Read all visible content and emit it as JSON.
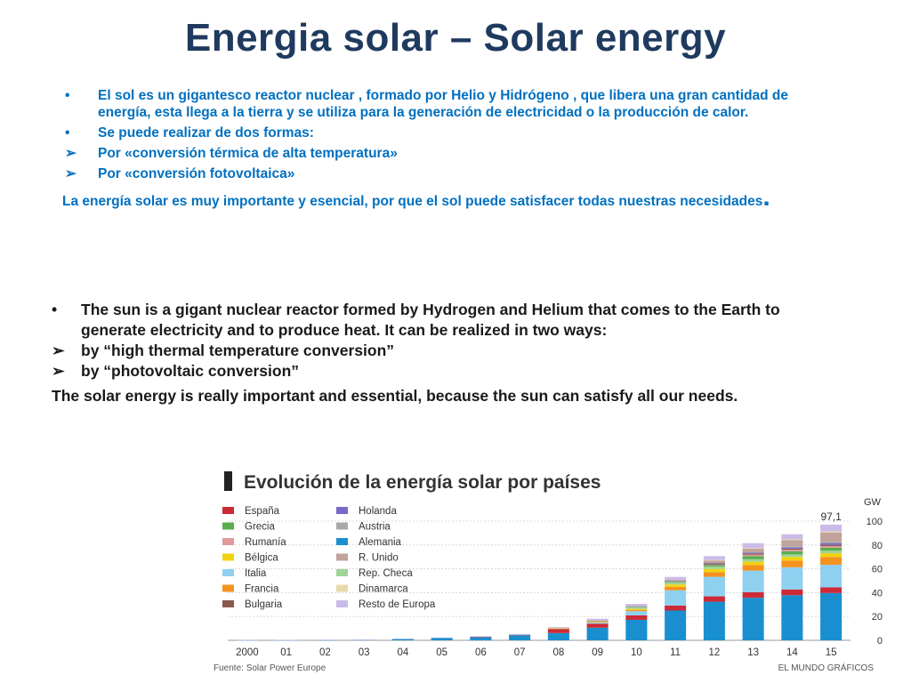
{
  "slide": {
    "title": "Energia solar – Solar energy"
  },
  "spanish": {
    "bullet1": "El sol es un gigantesco reactor nuclear , formado por Helio y Hidrógeno , que libera una gran cantidad de energía, esta llega  a la tierra y se utiliza para la generación de electricidad o la producción de calor.",
    "bullet2": "Se puede realizar de dos formas:",
    "arrow1": "Por «conversión térmica  de alta temperatura»",
    "arrow2": "Por «conversión fotovoltaica»",
    "closing": "La energía solar es muy importante y esencial, por que el sol puede satisfacer  todas nuestras necesidades",
    "closing_end": "."
  },
  "english": {
    "bullet1": "The  sun  is  a  gigant nuclear  reactor  formed by Hydrogen and Helium that  comes  to the Earth  to  generate  electricity  and  to  produce  heat. It can  be  realized  in  two ways:",
    "arrow1": "by  “high  thermal  temperature  conversion”",
    "arrow2": "by  “photovoltaic  conversion”",
    "closing": "The solar energy is really important and essential, because the sun can satisfy  all  our needs."
  },
  "chart_data": {
    "type": "bar",
    "stacked": true,
    "title": "Evolución de la energía solar por países",
    "ylabel": "GW",
    "ylim": [
      0,
      100
    ],
    "yticks": [
      0,
      20,
      40,
      60,
      80,
      100
    ],
    "categories": [
      "2000",
      "01",
      "02",
      "03",
      "04",
      "05",
      "06",
      "07",
      "08",
      "09",
      "10",
      "11",
      "12",
      "13",
      "14",
      "15"
    ],
    "total_label": "97,1",
    "source": "Fuente: Solar Power Europe",
    "credit": "EL MUNDO GRÁFICOS",
    "legend_position": "top-left",
    "series": [
      {
        "name": "Alemania",
        "color": "#1a8fd0",
        "values": [
          0.1,
          0.2,
          0.3,
          0.4,
          1.1,
          2.0,
          2.9,
          4.2,
          6.1,
          10.6,
          17.2,
          25.0,
          32.4,
          35.7,
          37.9,
          39.7
        ]
      },
      {
        "name": "España",
        "color": "#cc2a36",
        "values": [
          0,
          0,
          0,
          0,
          0,
          0,
          0.1,
          0.6,
          3.4,
          3.4,
          3.8,
          4.2,
          4.5,
          4.7,
          4.8,
          4.8
        ]
      },
      {
        "name": "Italia",
        "color": "#8fd0f0",
        "values": [
          0,
          0,
          0,
          0,
          0,
          0,
          0,
          0.1,
          0.4,
          1.1,
          3.5,
          12.8,
          16.4,
          18.1,
          18.6,
          18.9
        ]
      },
      {
        "name": "Francia",
        "color": "#f5921f",
        "values": [
          0,
          0,
          0,
          0,
          0,
          0,
          0,
          0,
          0.1,
          0.3,
          1.0,
          2.9,
          4.0,
          4.6,
          5.6,
          6.5
        ]
      },
      {
        "name": "Bélgica",
        "color": "#f2d310",
        "values": [
          0,
          0,
          0,
          0,
          0,
          0,
          0,
          0,
          0.1,
          0.6,
          0.9,
          2.0,
          2.6,
          2.9,
          3.1,
          3.2
        ]
      },
      {
        "name": "Rep. Checa",
        "color": "#9fd39a",
        "values": [
          0,
          0,
          0,
          0,
          0,
          0,
          0,
          0,
          0,
          0.5,
          1.9,
          2.0,
          2.1,
          2.1,
          2.1,
          2.1
        ]
      },
      {
        "name": "Grecia",
        "color": "#5aad4e",
        "values": [
          0,
          0,
          0,
          0,
          0,
          0,
          0,
          0,
          0,
          0,
          0.2,
          0.6,
          1.5,
          2.6,
          2.6,
          2.6
        ]
      },
      {
        "name": "Rumanía",
        "color": "#e0999c",
        "values": [
          0,
          0,
          0,
          0,
          0,
          0,
          0,
          0,
          0,
          0,
          0,
          0,
          0.1,
          1.2,
          1.3,
          1.3
        ]
      },
      {
        "name": "Bulgaria",
        "color": "#8a5a4e",
        "values": [
          0,
          0,
          0,
          0,
          0,
          0,
          0,
          0,
          0,
          0,
          0,
          0.1,
          0.9,
          1.0,
          1.0,
          1.0
        ]
      },
      {
        "name": "Holanda",
        "color": "#7b68c8",
        "values": [
          0,
          0,
          0,
          0,
          0,
          0,
          0,
          0,
          0,
          0.1,
          0.1,
          0.1,
          0.4,
          0.7,
          1.1,
          1.5
        ]
      },
      {
        "name": "Austria",
        "color": "#a8a8a8",
        "values": [
          0,
          0,
          0,
          0,
          0,
          0,
          0,
          0,
          0,
          0,
          0.1,
          0.2,
          0.4,
          0.6,
          0.8,
          0.9
        ]
      },
      {
        "name": "R. Unido",
        "color": "#c0a39c",
        "values": [
          0,
          0,
          0,
          0,
          0,
          0,
          0,
          0,
          0,
          0,
          0.1,
          1.0,
          1.7,
          2.8,
          5.2,
          8.0
        ]
      },
      {
        "name": "Dinamarca",
        "color": "#e8d9a8",
        "values": [
          0,
          0,
          0,
          0,
          0,
          0,
          0,
          0,
          0,
          0,
          0,
          0,
          0.4,
          0.5,
          0.6,
          0.8
        ]
      },
      {
        "name": "Resto de Europa",
        "color": "#cbbbe8",
        "values": [
          0.1,
          0.1,
          0.2,
          0.2,
          0.3,
          0.3,
          0.3,
          0.5,
          1.0,
          1.5,
          1.8,
          2.3,
          3.2,
          4.0,
          4.3,
          5.8
        ]
      }
    ],
    "legend_columns": [
      [
        "España",
        "Grecia",
        "Rumanía",
        "Bélgica",
        "Italia",
        "Francia",
        "Bulgaria"
      ],
      [
        "Holanda",
        "Austria",
        "Alemania",
        "R. Unido",
        "Rep. Checa",
        "Dinamarca",
        "Resto de Europa"
      ]
    ]
  }
}
